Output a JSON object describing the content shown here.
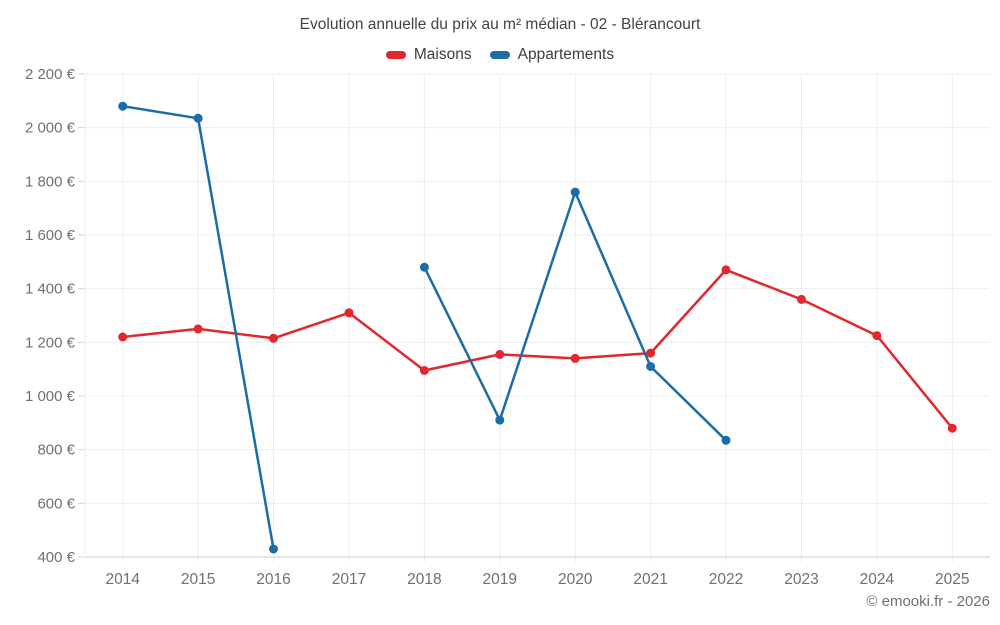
{
  "title": "Evolution annuelle du prix au m² médian - 02 - Blérancourt",
  "footer_credit": "© emooki.fr - 2026",
  "legend": {
    "items": [
      {
        "id": "maisons",
        "label": "Maisons",
        "color": "#e0282d"
      },
      {
        "id": "appartements",
        "label": "Appartements",
        "color": "#1b6da6"
      }
    ]
  },
  "colors": {
    "grid": "#ededed",
    "axis": "#d6d6d6",
    "tick_label": "#6d7175",
    "maisons": "#e0282d",
    "appartements": "#1b6da6"
  },
  "chart_data": {
    "type": "line",
    "title": "Evolution annuelle du prix au m² médian - 02 - Blérancourt",
    "categories": [
      "2014",
      "2015",
      "2016",
      "2017",
      "2018",
      "2019",
      "2020",
      "2021",
      "2022",
      "2023",
      "2024",
      "2025"
    ],
    "series": [
      {
        "name": "Maisons",
        "color": "#e0282d",
        "values": [
          1220,
          1250,
          1215,
          1310,
          1095,
          1155,
          1140,
          1160,
          1470,
          1360,
          1225,
          880
        ]
      },
      {
        "name": "Appartements",
        "color": "#1b6da6",
        "values": [
          2080,
          2035,
          430,
          null,
          1480,
          910,
          1760,
          1110,
          835,
          null,
          null,
          null
        ]
      }
    ],
    "xlabel": "",
    "ylabel": "",
    "unit": "€",
    "ylim": [
      400,
      2200
    ],
    "ytick_values": [
      400,
      600,
      800,
      1000,
      1200,
      1400,
      1600,
      1800,
      2000,
      2200
    ],
    "ytick_labels": [
      "400 €",
      "600 €",
      "800 €",
      "1 000 €",
      "1 200 €",
      "1 400 €",
      "1 600 €",
      "1 800 €",
      "2 000 €",
      "2 200 €"
    ],
    "grid": true,
    "legend_position": "top",
    "marker": "circle"
  }
}
